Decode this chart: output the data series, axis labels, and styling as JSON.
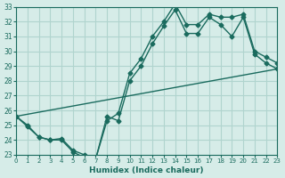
{
  "xlabel": "Humidex (Indice chaleur)",
  "ylabel": "",
  "bg_color": "#d6ece8",
  "line_color": "#1a6b5e",
  "grid_color": "#b0d4ce",
  "xlim": [
    0,
    23
  ],
  "ylim": [
    23,
    33
  ],
  "yticks": [
    23,
    24,
    25,
    26,
    27,
    28,
    29,
    30,
    31,
    32,
    33
  ],
  "xticks": [
    0,
    1,
    2,
    3,
    4,
    5,
    6,
    7,
    8,
    9,
    10,
    11,
    12,
    13,
    14,
    15,
    16,
    17,
    18,
    19,
    20,
    21,
    22,
    23
  ],
  "series": [
    {
      "x": [
        0,
        1,
        2,
        3,
        4,
        5,
        6,
        7,
        8,
        9,
        10,
        11,
        12,
        13,
        14,
        15,
        16,
        17,
        18,
        19,
        20,
        21,
        22,
        23
      ],
      "y": [
        25.6,
        24.9,
        24.2,
        24.0,
        24.0,
        23.2,
        22.8,
        22.7,
        25.6,
        25.3,
        28.0,
        29.0,
        30.5,
        31.7,
        32.8,
        31.2,
        31.2,
        32.3,
        31.8,
        31.0,
        32.3,
        29.8,
        29.2,
        28.8
      ],
      "marker": "D",
      "markersize": 2.5
    },
    {
      "x": [
        0,
        1,
        2,
        3,
        4,
        5,
        6,
        7,
        8,
        9,
        10,
        11,
        12,
        13,
        14,
        15,
        16,
        17,
        18,
        19,
        20,
        21,
        22,
        23
      ],
      "y": [
        25.6,
        25.0,
        24.2,
        24.0,
        24.1,
        23.3,
        23.0,
        22.7,
        25.3,
        25.8,
        28.5,
        29.5,
        31.0,
        32.0,
        33.2,
        31.8,
        31.8,
        32.5,
        32.3,
        32.3,
        32.5,
        30.0,
        29.6,
        29.2
      ],
      "marker": "D",
      "markersize": 2.5
    },
    {
      "x": [
        0,
        23
      ],
      "y": [
        25.6,
        28.8
      ],
      "marker": null,
      "markersize": 0
    }
  ]
}
